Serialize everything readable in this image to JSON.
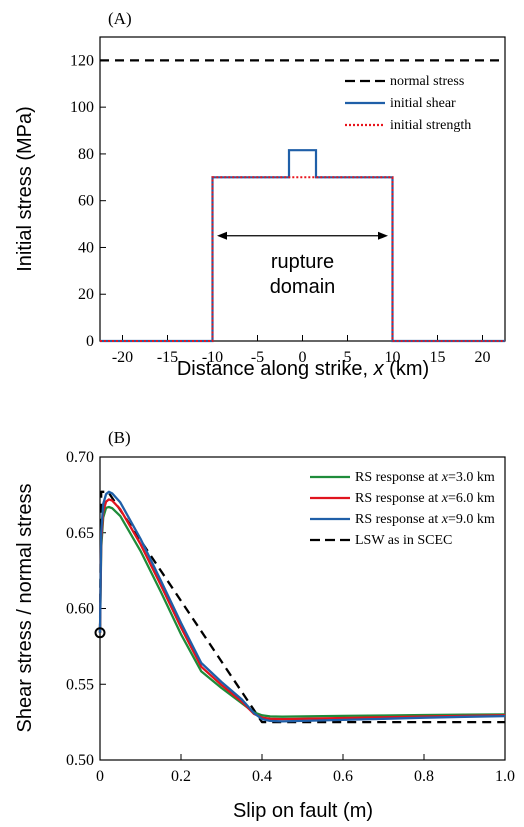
{
  "chart_data": [
    {
      "type": "line",
      "panel_label": "(A)",
      "xlabel": "Distance along strike, x (km)",
      "xlabel_parts": [
        "Distance along strike, ",
        "x",
        " (km)"
      ],
      "ylabel": "Initial stress (MPa)",
      "xlim": [
        -22.5,
        22.5
      ],
      "ylim": [
        0,
        130
      ],
      "xticks": [
        -20,
        -15,
        -10,
        -5,
        0,
        5,
        10,
        15,
        20
      ],
      "yticks": [
        0,
        20,
        40,
        60,
        80,
        100,
        120
      ],
      "annotation": {
        "lines": [
          "rupture",
          "domain"
        ],
        "arrow_x": [
          -9.5,
          9.5
        ],
        "arrow_y": 45
      },
      "series": [
        {
          "name": "normal stress",
          "color": "#000000",
          "style": "dashed",
          "x": [
            -22.5,
            22.5
          ],
          "y": [
            120,
            120
          ]
        },
        {
          "name": "initial shear",
          "color": "#1f5fa8",
          "style": "solid",
          "x": [
            -22.5,
            -10,
            -10,
            -1.5,
            -1.5,
            1.5,
            1.5,
            10,
            10,
            22.5
          ],
          "y": [
            0,
            0,
            70,
            70,
            81.6,
            81.6,
            70,
            70,
            0,
            0
          ]
        },
        {
          "name": "initial strength",
          "color": "#e8141c",
          "style": "dotted",
          "x": [
            -22.5,
            -10,
            -10,
            10,
            10,
            22.5
          ],
          "y": [
            0,
            0,
            70,
            70,
            0,
            0
          ]
        }
      ]
    },
    {
      "type": "line",
      "panel_label": "(B)",
      "xlabel": "Slip on fault (m)",
      "ylabel": "Shear stress / normal stress",
      "xlim": [
        0,
        1.0
      ],
      "ylim": [
        0.5,
        0.7
      ],
      "xticks": [
        "0",
        "0.2",
        "0.4",
        "0.6",
        "0.8",
        "1.0"
      ],
      "yticks": [
        "0.50",
        "0.55",
        "0.60",
        "0.65",
        "0.70"
      ],
      "marker": {
        "x": 0,
        "y": 0.584
      },
      "series": [
        {
          "name": "RS response at x=3.0 km",
          "name_parts": [
            "RS response at ",
            "x",
            "=3.0 km"
          ],
          "color": "#1e8c3a",
          "style": "solid",
          "x": [
            0,
            0.003,
            0.008,
            0.015,
            0.022,
            0.03,
            0.05,
            0.1,
            0.15,
            0.2,
            0.25,
            0.3,
            0.35,
            0.38,
            0.4,
            0.42,
            0.45,
            0.5,
            0.6,
            0.7,
            0.8,
            0.9,
            1.0
          ],
          "y": [
            0.584,
            0.64,
            0.66,
            0.6665,
            0.667,
            0.6662,
            0.661,
            0.638,
            0.611,
            0.583,
            0.5585,
            0.5475,
            0.5375,
            0.5315,
            0.5295,
            0.5288,
            0.5286,
            0.5288,
            0.5291,
            0.5294,
            0.5297,
            0.5299,
            0.5301
          ]
        },
        {
          "name": "RS response at x=6.0 km",
          "name_parts": [
            "RS response at ",
            "x",
            "=6.0 km"
          ],
          "color": "#e0141e",
          "style": "solid",
          "x": [
            0,
            0.003,
            0.008,
            0.015,
            0.022,
            0.03,
            0.05,
            0.1,
            0.15,
            0.2,
            0.25,
            0.3,
            0.35,
            0.38,
            0.4,
            0.42,
            0.45,
            0.5,
            0.6,
            0.7,
            0.8,
            0.9,
            1.0
          ],
          "y": [
            0.584,
            0.645,
            0.664,
            0.6705,
            0.672,
            0.6712,
            0.6655,
            0.6425,
            0.6155,
            0.5875,
            0.5615,
            0.5495,
            0.5385,
            0.5305,
            0.528,
            0.5272,
            0.527,
            0.5272,
            0.5277,
            0.5282,
            0.5287,
            0.5291,
            0.5295
          ]
        },
        {
          "name": "RS response at x=9.0 km",
          "name_parts": [
            "RS response at ",
            "x",
            "=9.0 km"
          ],
          "color": "#1f5fa8",
          "style": "solid",
          "x": [
            0,
            0.003,
            0.008,
            0.015,
            0.022,
            0.03,
            0.05,
            0.1,
            0.15,
            0.2,
            0.25,
            0.3,
            0.35,
            0.38,
            0.4,
            0.42,
            0.45,
            0.5,
            0.6,
            0.7,
            0.8,
            0.9,
            1.0
          ],
          "y": [
            0.584,
            0.65,
            0.669,
            0.6755,
            0.677,
            0.676,
            0.67,
            0.646,
            0.6185,
            0.5905,
            0.564,
            0.5515,
            0.54,
            0.531,
            0.527,
            0.5258,
            0.5255,
            0.5258,
            0.5265,
            0.5272,
            0.5279,
            0.5285,
            0.529
          ]
        },
        {
          "name": "LSW as in SCEC",
          "color": "#000000",
          "style": "dashed",
          "x": [
            0,
            0.003,
            0.02,
            0.4,
            1.0
          ],
          "y": [
            0.584,
            0.677,
            0.677,
            0.525,
            0.525
          ]
        }
      ]
    }
  ]
}
